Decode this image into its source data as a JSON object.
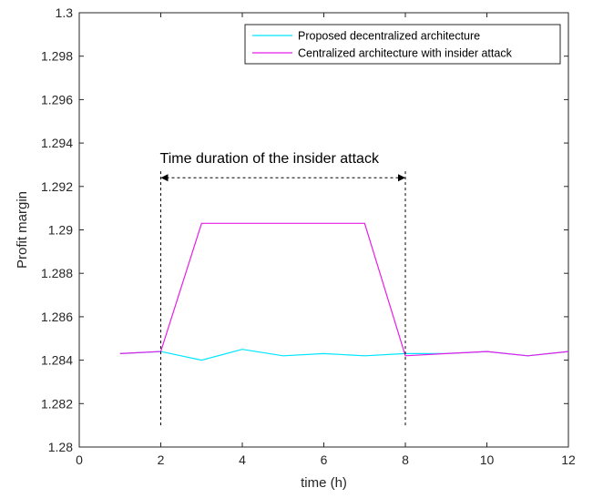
{
  "chart_data": {
    "type": "line",
    "title": "",
    "xlabel": "time (h)",
    "ylabel": "Profit margin",
    "xlim": [
      0,
      12
    ],
    "ylim": [
      1.28,
      1.3
    ],
    "x_ticks": [
      "0",
      "2",
      "4",
      "6",
      "8",
      "10",
      "12"
    ],
    "y_ticks": [
      "1.28",
      "1.282",
      "1.284",
      "1.286",
      "1.288",
      "1.29",
      "1.292",
      "1.294",
      "1.296",
      "1.298",
      "1.3"
    ],
    "grid": false,
    "legend_position": "top-right",
    "series": [
      {
        "name": "Proposed decentralized architecture",
        "color": "#00e5ff",
        "x": [
          1,
          2,
          3,
          4,
          5,
          6,
          7,
          8,
          9,
          10,
          11,
          12
        ],
        "y": [
          1.2843,
          1.2844,
          1.284,
          1.2845,
          1.2842,
          1.2843,
          1.2842,
          1.2843,
          1.2843,
          1.2844,
          1.2842,
          1.2844
        ]
      },
      {
        "name": "Centralized architecture with insider attack",
        "color": "#e61ee6",
        "x": [
          1,
          2,
          3,
          4,
          5,
          6,
          7,
          8,
          9,
          10,
          11,
          12
        ],
        "y": [
          1.2843,
          1.2844,
          1.2903,
          1.2903,
          1.2903,
          1.2903,
          1.2903,
          1.2842,
          1.2843,
          1.2844,
          1.2842,
          1.2844
        ]
      }
    ],
    "annotation": {
      "text": "Time duration of the insider attack",
      "x_start": 2,
      "x_end": 8,
      "arrow_y": 1.2924,
      "text_y": 1.2933,
      "vline_bottom": 1.281
    }
  }
}
